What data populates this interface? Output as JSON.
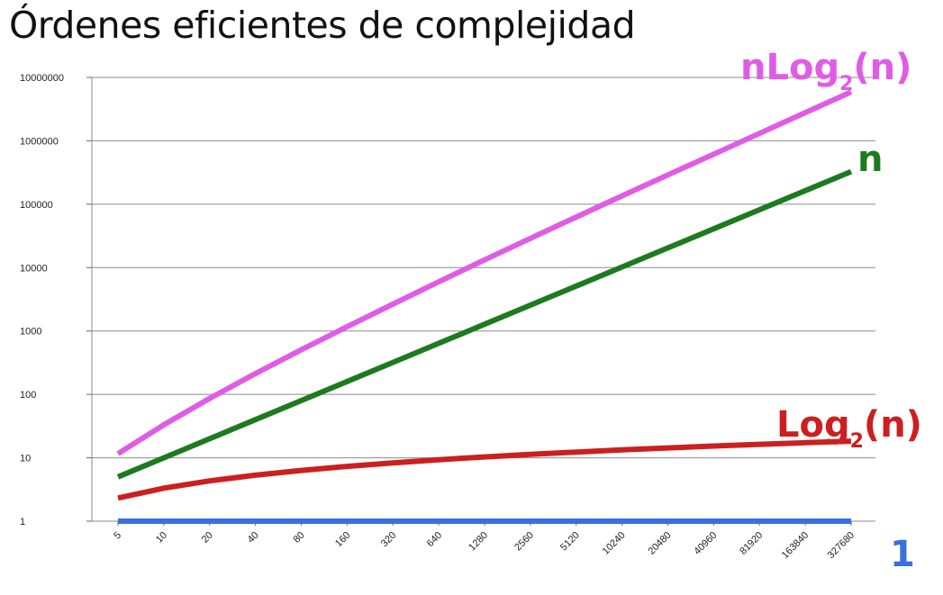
{
  "chart_data": {
    "type": "line",
    "title": "Órdenes eficientes de complejidad",
    "xlabel": "",
    "ylabel": "",
    "yscale": "log",
    "ylim": [
      1,
      10000000
    ],
    "y_ticks": [
      "1",
      "10",
      "100",
      "1000",
      "10000",
      "100000",
      "1000000",
      "10000000"
    ],
    "categories": [
      "5",
      "10",
      "20",
      "40",
      "80",
      "160",
      "320",
      "640",
      "1280",
      "2560",
      "5120",
      "10240",
      "20480",
      "40960",
      "81920",
      "163840",
      "327680"
    ],
    "grid": true,
    "series": [
      {
        "name": "nLog2(n)",
        "label_main": "nLog",
        "label_sub": "2",
        "label_tail": "(n)",
        "color": "#e05ce6",
        "values": [
          11.6,
          33.2,
          86.4,
          212.9,
          505.8,
          1171.6,
          2663.2,
          5970.4,
          13222.8,
          28963.1,
          62862.1,
          135402.0,
          289663.9,
          614407.9,
          1310719.7,
          2785280.0,
          5898240.0
        ]
      },
      {
        "name": "n",
        "label_main": "n",
        "label_sub": "",
        "label_tail": "",
        "color": "#1e7a1e",
        "values": [
          5,
          10,
          20,
          40,
          80,
          160,
          320,
          640,
          1280,
          2560,
          5120,
          10240,
          20480,
          40960,
          81920,
          163840,
          327680
        ]
      },
      {
        "name": "Log2(n)",
        "label_main": "Log",
        "label_sub": "2",
        "label_tail": "(n)",
        "color": "#cc1f1f",
        "values": [
          2.32,
          3.32,
          4.32,
          5.32,
          6.32,
          7.32,
          8.32,
          9.32,
          10.32,
          11.32,
          12.32,
          13.32,
          14.32,
          15.32,
          16.32,
          17.32,
          18.32
        ]
      },
      {
        "name": "1",
        "label_main": "1",
        "label_sub": "",
        "label_tail": "",
        "color": "#3b6fe0",
        "values": [
          1,
          1,
          1,
          1,
          1,
          1,
          1,
          1,
          1,
          1,
          1,
          1,
          1,
          1,
          1,
          1,
          1
        ]
      }
    ]
  }
}
